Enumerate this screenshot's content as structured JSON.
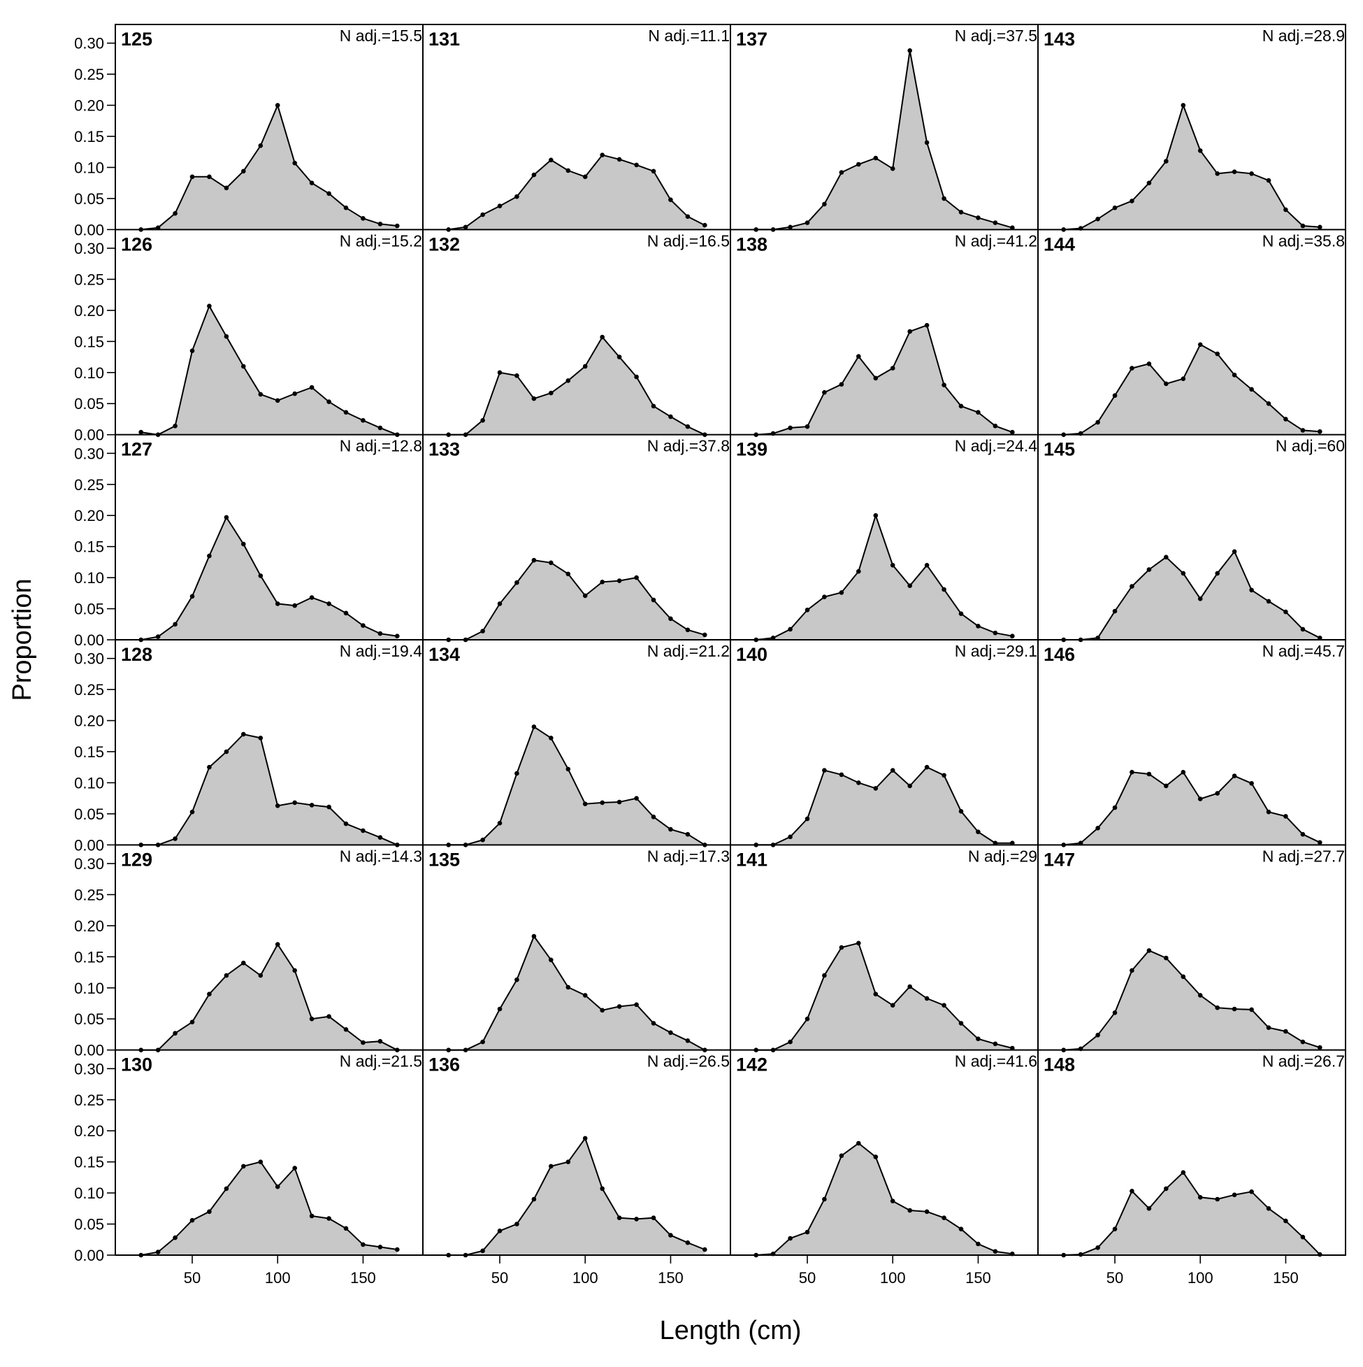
{
  "chart_data": {
    "type": "area",
    "xlabel": "Length (cm)",
    "ylabel": "Proportion",
    "xlim": [
      5,
      185
    ],
    "ylim": [
      0,
      0.33
    ],
    "x_ticks": [
      50,
      100,
      150
    ],
    "x_tick_labels": [
      "50",
      "100",
      "150"
    ],
    "y_ticks": [
      0,
      0.05,
      0.1,
      0.15,
      0.2,
      0.25,
      0.3
    ],
    "y_tick_labels": [
      "0.00",
      "0.05",
      "0.10",
      "0.15",
      "0.20",
      "0.25",
      "0.30"
    ],
    "grid": false,
    "layout": "6 rows x 4 columns; panels fill column-wise (125-130, 131-136, 137-142, 143-148)",
    "colors": {
      "fill": "#c8c8c8",
      "line": "#000000",
      "point": "#000000"
    },
    "x": [
      20,
      30,
      40,
      50,
      60,
      70,
      80,
      90,
      100,
      110,
      120,
      130,
      140,
      150,
      160,
      170
    ],
    "panels": [
      {
        "id": "125",
        "n_adj": "N adj.=15.5",
        "values": [
          0,
          0.003,
          0.026,
          0.085,
          0.085,
          0.067,
          0.094,
          0.135,
          0.2,
          0.107,
          0.075,
          0.058,
          0.035,
          0.018,
          0.009,
          0.006
        ]
      },
      {
        "id": "126",
        "n_adj": "N adj.=15.2",
        "values": [
          0.004,
          0,
          0.014,
          0.135,
          0.207,
          0.158,
          0.11,
          0.065,
          0.055,
          0.066,
          0.076,
          0.053,
          0.036,
          0.023,
          0.011,
          0
        ]
      },
      {
        "id": "127",
        "n_adj": "N adj.=12.8",
        "values": [
          0,
          0.005,
          0.025,
          0.07,
          0.135,
          0.197,
          0.154,
          0.103,
          0.058,
          0.055,
          0.068,
          0.058,
          0.043,
          0.023,
          0.01,
          0.006
        ]
      },
      {
        "id": "128",
        "n_adj": "N adj.=19.4",
        "values": [
          0,
          0,
          0.01,
          0.053,
          0.125,
          0.15,
          0.178,
          0.172,
          0.063,
          0.068,
          0.064,
          0.061,
          0.034,
          0.023,
          0.012,
          0
        ]
      },
      {
        "id": "129",
        "n_adj": "N adj.=14.3",
        "values": [
          0,
          0,
          0.027,
          0.045,
          0.09,
          0.12,
          0.14,
          0.12,
          0.17,
          0.128,
          0.05,
          0.054,
          0.033,
          0.012,
          0.014,
          0
        ]
      },
      {
        "id": "130",
        "n_adj": "N adj.=21.5",
        "values": [
          0,
          0.005,
          0.028,
          0.056,
          0.07,
          0.107,
          0.143,
          0.15,
          0.11,
          0.14,
          0.063,
          0.059,
          0.043,
          0.017,
          0.013,
          0.009
        ]
      },
      {
        "id": "131",
        "n_adj": "N adj.=11.1",
        "values": [
          0,
          0.004,
          0.024,
          0.038,
          0.053,
          0.088,
          0.112,
          0.095,
          0.085,
          0.12,
          0.113,
          0.104,
          0.094,
          0.048,
          0.021,
          0.007
        ]
      },
      {
        "id": "132",
        "n_adj": "N adj.=16.5",
        "values": [
          0,
          0,
          0.023,
          0.1,
          0.095,
          0.058,
          0.067,
          0.087,
          0.11,
          0.157,
          0.125,
          0.093,
          0.046,
          0.029,
          0.013,
          0
        ]
      },
      {
        "id": "133",
        "n_adj": "N adj.=37.8",
        "values": [
          0,
          0,
          0.014,
          0.058,
          0.092,
          0.128,
          0.124,
          0.106,
          0.071,
          0.093,
          0.095,
          0.1,
          0.064,
          0.034,
          0.016,
          0.008
        ]
      },
      {
        "id": "134",
        "n_adj": "N adj.=21.2",
        "values": [
          0,
          0,
          0.008,
          0.035,
          0.115,
          0.19,
          0.172,
          0.122,
          0.066,
          0.068,
          0.069,
          0.075,
          0.045,
          0.025,
          0.017,
          0
        ]
      },
      {
        "id": "135",
        "n_adj": "N adj.=17.3",
        "values": [
          0,
          0,
          0.013,
          0.066,
          0.113,
          0.183,
          0.145,
          0.101,
          0.088,
          0.064,
          0.07,
          0.073,
          0.043,
          0.028,
          0.015,
          0
        ]
      },
      {
        "id": "136",
        "n_adj": "N adj.=26.5",
        "values": [
          0,
          0,
          0.007,
          0.039,
          0.05,
          0.09,
          0.143,
          0.15,
          0.188,
          0.107,
          0.06,
          0.058,
          0.06,
          0.032,
          0.02,
          0.009
        ]
      },
      {
        "id": "137",
        "n_adj": "N adj.=37.5",
        "values": [
          0,
          0,
          0.004,
          0.011,
          0.041,
          0.092,
          0.105,
          0.115,
          0.098,
          0.288,
          0.14,
          0.05,
          0.028,
          0.019,
          0.011,
          0.003
        ]
      },
      {
        "id": "138",
        "n_adj": "N adj.=41.2",
        "values": [
          0,
          0.002,
          0.011,
          0.013,
          0.068,
          0.081,
          0.126,
          0.091,
          0.107,
          0.166,
          0.176,
          0.08,
          0.046,
          0.036,
          0.014,
          0.004
        ]
      },
      {
        "id": "139",
        "n_adj": "N adj.=24.4",
        "values": [
          0,
          0.003,
          0.017,
          0.048,
          0.069,
          0.076,
          0.11,
          0.2,
          0.12,
          0.087,
          0.12,
          0.081,
          0.042,
          0.022,
          0.011,
          0.006
        ]
      },
      {
        "id": "140",
        "n_adj": "N adj.=29.1",
        "values": [
          0,
          0,
          0.013,
          0.042,
          0.12,
          0.113,
          0.1,
          0.091,
          0.12,
          0.095,
          0.125,
          0.112,
          0.054,
          0.021,
          0.003,
          0.003
        ]
      },
      {
        "id": "141",
        "n_adj": "N adj.=29",
        "values": [
          0,
          0,
          0.013,
          0.05,
          0.12,
          0.165,
          0.172,
          0.09,
          0.072,
          0.102,
          0.083,
          0.072,
          0.043,
          0.018,
          0.01,
          0.003
        ]
      },
      {
        "id": "142",
        "n_adj": "N adj.=41.6",
        "values": [
          0,
          0.002,
          0.027,
          0.037,
          0.09,
          0.16,
          0.18,
          0.158,
          0.087,
          0.072,
          0.07,
          0.06,
          0.042,
          0.018,
          0.006,
          0.002
        ]
      },
      {
        "id": "143",
        "n_adj": "N adj.=28.9",
        "values": [
          0,
          0.002,
          0.017,
          0.035,
          0.046,
          0.075,
          0.11,
          0.2,
          0.127,
          0.09,
          0.093,
          0.09,
          0.079,
          0.032,
          0.006,
          0.004
        ]
      },
      {
        "id": "144",
        "n_adj": "N adj.=35.8",
        "values": [
          0,
          0.002,
          0.02,
          0.063,
          0.107,
          0.114,
          0.082,
          0.09,
          0.145,
          0.13,
          0.096,
          0.073,
          0.05,
          0.025,
          0.007,
          0.005
        ]
      },
      {
        "id": "145",
        "n_adj": "N adj.=60",
        "values": [
          0,
          0,
          0.003,
          0.046,
          0.086,
          0.113,
          0.133,
          0.107,
          0.066,
          0.107,
          0.142,
          0.08,
          0.062,
          0.045,
          0.017,
          0.003
        ]
      },
      {
        "id": "146",
        "n_adj": "N adj.=45.7",
        "values": [
          0,
          0.003,
          0.027,
          0.06,
          0.117,
          0.114,
          0.095,
          0.117,
          0.074,
          0.083,
          0.111,
          0.099,
          0.053,
          0.046,
          0.017,
          0.004
        ]
      },
      {
        "id": "147",
        "n_adj": "N adj.=27.7",
        "values": [
          0,
          0.002,
          0.024,
          0.06,
          0.128,
          0.16,
          0.148,
          0.118,
          0.088,
          0.068,
          0.066,
          0.065,
          0.036,
          0.03,
          0.013,
          0.004
        ]
      },
      {
        "id": "148",
        "n_adj": "N adj.=26.7",
        "values": [
          0,
          0.001,
          0.012,
          0.042,
          0.103,
          0.075,
          0.107,
          0.133,
          0.093,
          0.09,
          0.097,
          0.102,
          0.075,
          0.055,
          0.029,
          0.001
        ]
      }
    ]
  }
}
